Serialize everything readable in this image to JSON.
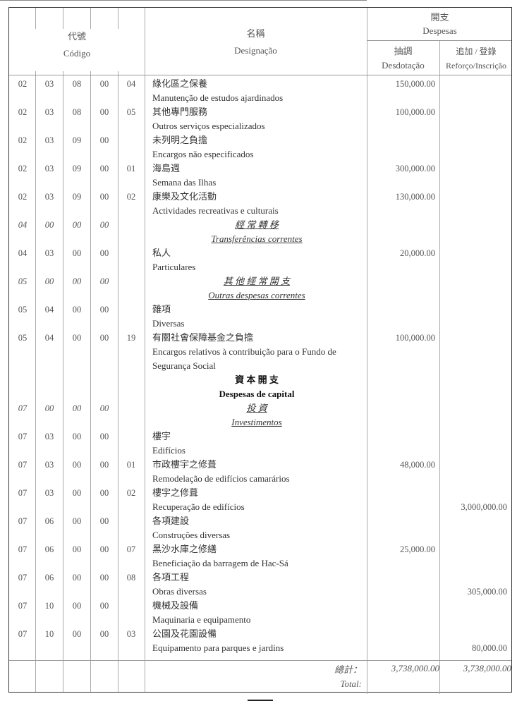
{
  "header": {
    "codigo_zh": "代號",
    "codigo_pt": "Código",
    "designacao_zh": "名稱",
    "designacao_pt": "Designação",
    "despesas_zh": "開支",
    "despesas_pt": "Despesas",
    "desdotacao_zh": "抽調",
    "desdotacao_pt": "Desdotação",
    "reforco_zh": "追加 / 登錄",
    "reforco_pt": "Reforço/Inscrição"
  },
  "rows": [
    {
      "codes": [
        "02",
        "03",
        "08",
        "00",
        "04"
      ],
      "lines": [
        "綠化區之保養",
        "Manutenção de estudos ajardinados"
      ],
      "desdotacao": "150,000.00",
      "reforco": ""
    },
    {
      "codes": [
        "02",
        "03",
        "08",
        "00",
        "05"
      ],
      "lines": [
        "其他專門服務",
        "Outros serviços especializados"
      ],
      "desdotacao": "100,000.00",
      "reforco": ""
    },
    {
      "codes": [
        "02",
        "03",
        "09",
        "00",
        ""
      ],
      "lines": [
        "未列明之負擔",
        "Encargos não especificados"
      ],
      "desdotacao": "",
      "reforco": ""
    },
    {
      "codes": [
        "02",
        "03",
        "09",
        "00",
        "01"
      ],
      "lines": [
        "海島週",
        "Semana das Ilhas"
      ],
      "desdotacao": "300,000.00",
      "reforco": ""
    },
    {
      "codes": [
        "02",
        "03",
        "09",
        "00",
        "02"
      ],
      "lines": [
        "康樂及文化活動",
        "Actividades recreativas e culturais"
      ],
      "desdotacao": "130,000.00",
      "reforco": ""
    },
    {
      "type": "hdr",
      "codes": [
        "04",
        "00",
        "00",
        "00",
        ""
      ],
      "lines": [
        "經 常 轉 移",
        "Transferências correntes"
      ],
      "desdotacao": "",
      "reforco": ""
    },
    {
      "codes": [
        "04",
        "03",
        "00",
        "00",
        ""
      ],
      "lines": [
        "私人",
        "Particulares"
      ],
      "desdotacao": "20,000.00",
      "reforco": ""
    },
    {
      "type": "hdr",
      "codes": [
        "05",
        "00",
        "00",
        "00",
        ""
      ],
      "lines": [
        "其 他 經 常 開 支",
        "Outras despesas correntes"
      ],
      "desdotacao": "",
      "reforco": ""
    },
    {
      "codes": [
        "05",
        "04",
        "00",
        "00",
        ""
      ],
      "lines": [
        "雜項",
        "Diversas"
      ],
      "desdotacao": "",
      "reforco": ""
    },
    {
      "codes": [
        "05",
        "04",
        "00",
        "00",
        "19"
      ],
      "lines": [
        "有關社會保障基金之負擔",
        "Encargos relativos à contribuição para o Fundo de",
        "Segurança Social"
      ],
      "desdotacao": "100,000.00",
      "reforco": ""
    },
    {
      "type": "cap",
      "codes": [
        "",
        "",
        "",
        "",
        ""
      ],
      "lines": [
        "資 本 開 支",
        "Despesas de capital"
      ],
      "desdotacao": "",
      "reforco": ""
    },
    {
      "type": "hdr",
      "codes": [
        "07",
        "00",
        "00",
        "00",
        ""
      ],
      "lines": [
        "投 資",
        "Investimentos"
      ],
      "desdotacao": "",
      "reforco": ""
    },
    {
      "codes": [
        "07",
        "03",
        "00",
        "00",
        ""
      ],
      "lines": [
        "樓宇",
        "Edifícios"
      ],
      "desdotacao": "",
      "reforco": ""
    },
    {
      "codes": [
        "07",
        "03",
        "00",
        "00",
        "01"
      ],
      "lines": [
        "市政樓宇之修葺",
        "Remodelação de edifícios camarários"
      ],
      "desdotacao": "48,000.00",
      "reforco": ""
    },
    {
      "codes": [
        "07",
        "03",
        "00",
        "00",
        "02"
      ],
      "lines": [
        "樓宇之修葺",
        "Recuperação de edifícios"
      ],
      "desdotacao": "",
      "reforco": "3,000,000.00"
    },
    {
      "codes": [
        "07",
        "06",
        "00",
        "00",
        ""
      ],
      "lines": [
        "各項建設",
        "Construções diversas"
      ],
      "desdotacao": "",
      "reforco": ""
    },
    {
      "codes": [
        "07",
        "06",
        "00",
        "00",
        "07"
      ],
      "lines": [
        "黑沙水庫之修繕",
        "Beneficiação da barragem de Hac-Sá"
      ],
      "desdotacao": "25,000.00",
      "reforco": ""
    },
    {
      "codes": [
        "07",
        "06",
        "00",
        "00",
        "08"
      ],
      "lines": [
        "各項工程",
        "Obras diversas"
      ],
      "desdotacao": "",
      "reforco": "305,000.00"
    },
    {
      "codes": [
        "07",
        "10",
        "00",
        "00",
        ""
      ],
      "lines": [
        "機械及設備",
        "Maquinaria e equipamento"
      ],
      "desdotacao": "",
      "reforco": ""
    },
    {
      "codes": [
        "07",
        "10",
        "00",
        "00",
        "03"
      ],
      "lines": [
        "公園及花園設備",
        "Equipamento para parques e jardins"
      ],
      "desdotacao": "",
      "reforco": "80,000.00"
    }
  ],
  "total": {
    "label_zh": "總計：",
    "label_pt": "Total:",
    "desdotacao": "3,738,000.00",
    "reforco": "3,738,000.00"
  }
}
